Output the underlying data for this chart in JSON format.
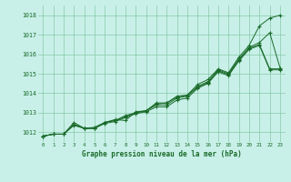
{
  "title": "Graphe pression niveau de la mer (hPa)",
  "bg_color": "#c8f0e8",
  "grid_color": "#88c8a8",
  "line_color": "#1a6b2a",
  "marker_color": "#1a6b2a",
  "xlim": [
    -0.5,
    23.5
  ],
  "ylim": [
    1011.5,
    1018.5
  ],
  "yticks": [
    1012,
    1013,
    1014,
    1015,
    1016,
    1017,
    1018
  ],
  "xticks": [
    0,
    1,
    2,
    3,
    4,
    5,
    6,
    7,
    8,
    9,
    10,
    11,
    12,
    13,
    14,
    15,
    16,
    17,
    18,
    19,
    20,
    21,
    22,
    23
  ],
  "series": [
    [
      1011.8,
      1011.9,
      1011.9,
      1012.5,
      1012.2,
      1012.25,
      1012.5,
      1012.65,
      1012.6,
      1013.05,
      1013.1,
      1013.5,
      1013.5,
      1013.85,
      1013.9,
      1014.45,
      1014.7,
      1015.25,
      1015.05,
      1015.85,
      1016.45,
      1017.45,
      1017.85,
      1018.0
    ],
    [
      1011.8,
      1011.9,
      1011.9,
      1012.4,
      1012.2,
      1012.2,
      1012.5,
      1012.6,
      1012.85,
      1013.0,
      1013.1,
      1013.45,
      1013.5,
      1013.8,
      1013.9,
      1014.35,
      1014.6,
      1015.2,
      1015.0,
      1015.75,
      1016.35,
      1016.6,
      1017.1,
      1015.3
    ],
    [
      1011.8,
      1011.9,
      1011.9,
      1012.4,
      1012.2,
      1012.2,
      1012.5,
      1012.6,
      1012.8,
      1013.0,
      1013.1,
      1013.4,
      1013.4,
      1013.75,
      1013.85,
      1014.3,
      1014.55,
      1015.15,
      1014.95,
      1015.7,
      1016.3,
      1016.5,
      1015.25,
      1015.25
    ],
    [
      1011.8,
      1011.9,
      1011.9,
      1012.35,
      1012.2,
      1012.2,
      1012.45,
      1012.55,
      1012.75,
      1012.95,
      1013.05,
      1013.3,
      1013.3,
      1013.65,
      1013.75,
      1014.25,
      1014.5,
      1015.1,
      1014.9,
      1015.65,
      1016.25,
      1016.45,
      1015.2,
      1015.2
    ]
  ]
}
